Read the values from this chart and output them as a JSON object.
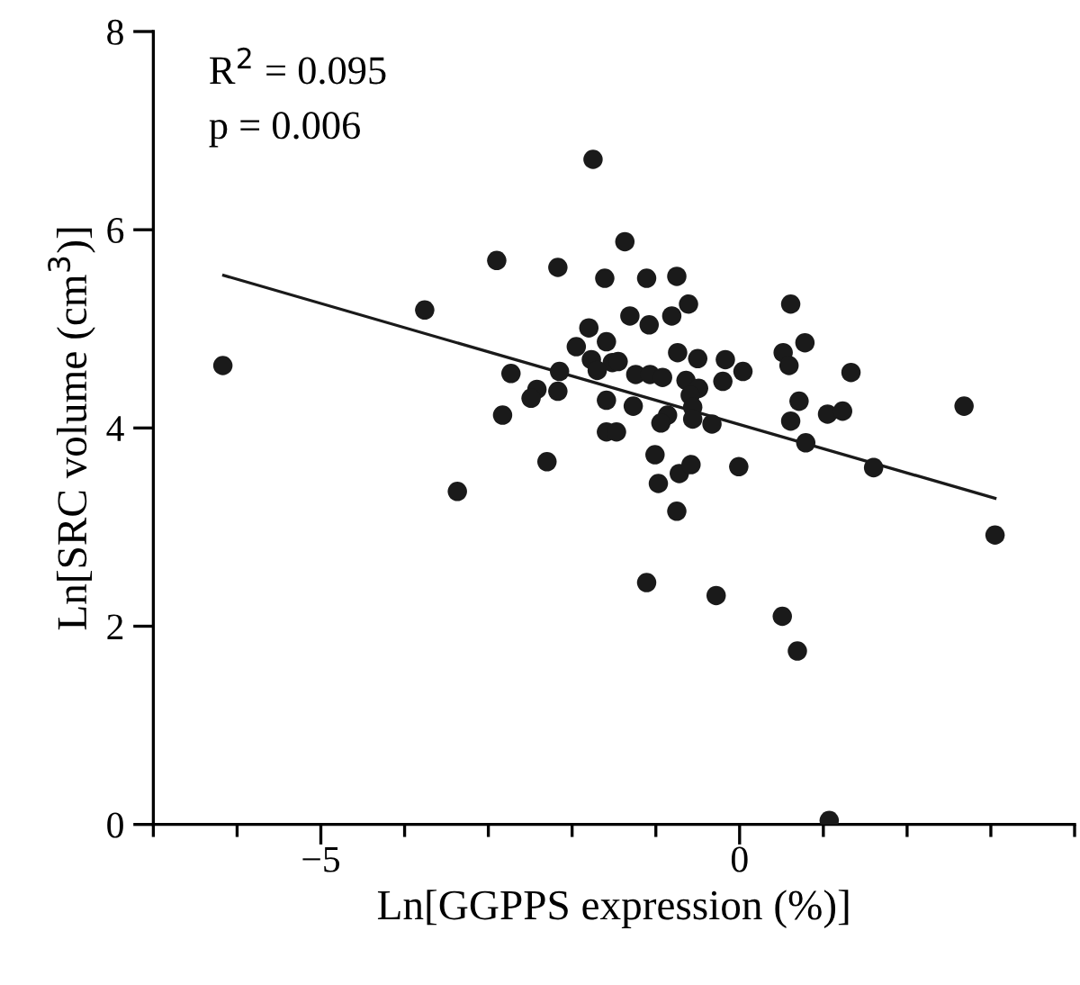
{
  "chart_data": {
    "type": "scatter",
    "xlabel": "Ln[GGPPS expression (%)]",
    "ylabel": "Ln[SRC volume (cm$^{3}$)]",
    "annotations": [
      "R$^{2}$ = 0.095",
      "p = 0.006"
    ],
    "xlim": [
      -7,
      4
    ],
    "ylim": [
      0,
      8
    ],
    "xticks": [
      {
        "value": -7,
        "label": null
      },
      {
        "value": -6,
        "label": null
      },
      {
        "value": -5,
        "label": "−5"
      },
      {
        "value": -4,
        "label": null
      },
      {
        "value": -3,
        "label": null
      },
      {
        "value": -2,
        "label": null
      },
      {
        "value": -1,
        "label": null
      },
      0,
      {
        "value": 1,
        "label": null
      },
      {
        "value": 2,
        "label": null
      },
      {
        "value": 3,
        "label": null
      },
      {
        "value": 4,
        "label": null
      }
    ],
    "yticks": [
      0,
      2,
      4,
      6,
      8
    ],
    "grid": false,
    "legend": false,
    "marker": "circle",
    "series": [
      {
        "color": "#1a1a1a",
        "x": [
          -6.17,
          -3.76,
          -2.9,
          -2.17,
          -1.75,
          -1.61,
          -1.8,
          -1.95,
          -2.73,
          -2.15,
          -2.17,
          -2.42,
          -2.49,
          -2.83,
          -2.3,
          -3.37,
          -1.59,
          -1.59,
          -1.37,
          -1.11,
          -0.75,
          -0.61,
          -0.81,
          -1.31,
          -1.08,
          -1.59,
          -1.77,
          -1.52,
          -1.45,
          -1.7,
          -1.24,
          -1.07,
          -0.92,
          -0.74,
          -0.5,
          -0.17,
          0.04,
          -0.2,
          -0.64,
          -0.49,
          -0.59,
          -0.56,
          -0.56,
          -0.33,
          -0.86,
          -0.94,
          -1.27,
          -1.47,
          -1.01,
          -0.97,
          -0.72,
          -0.58,
          -0.75,
          -0.01,
          -1.11,
          -0.28,
          0.51,
          0.69,
          1.07,
          0.61,
          0.52,
          0.59,
          0.78,
          0.71,
          0.61,
          0.79,
          1.05,
          1.23,
          1.33,
          1.6,
          2.68,
          3.05
        ],
        "values": [
          4.63,
          5.19,
          5.69,
          5.62,
          6.71,
          5.51,
          5.01,
          4.82,
          4.55,
          4.57,
          4.37,
          4.39,
          4.3,
          4.13,
          3.66,
          3.36,
          4.28,
          3.96,
          5.88,
          5.51,
          5.53,
          5.25,
          5.13,
          5.13,
          5.04,
          4.87,
          4.69,
          4.66,
          4.67,
          4.58,
          4.54,
          4.54,
          4.51,
          4.76,
          4.7,
          4.69,
          4.57,
          4.47,
          4.48,
          4.4,
          4.33,
          4.21,
          4.09,
          4.04,
          4.13,
          4.05,
          4.22,
          3.96,
          3.73,
          3.44,
          3.54,
          3.63,
          3.16,
          3.61,
          2.44,
          2.31,
          2.1,
          1.75,
          0.04,
          5.25,
          4.76,
          4.63,
          4.86,
          4.27,
          4.07,
          3.85,
          4.14,
          4.17,
          4.56,
          3.6,
          4.22,
          2.92
        ]
      },
      {
        "type": "line",
        "color": "#1a1a1a",
        "marker": "none",
        "line_style": "solid",
        "x": [
          -6.16,
          3.05
        ],
        "values": [
          5.54,
          3.29
        ]
      }
    ]
  }
}
